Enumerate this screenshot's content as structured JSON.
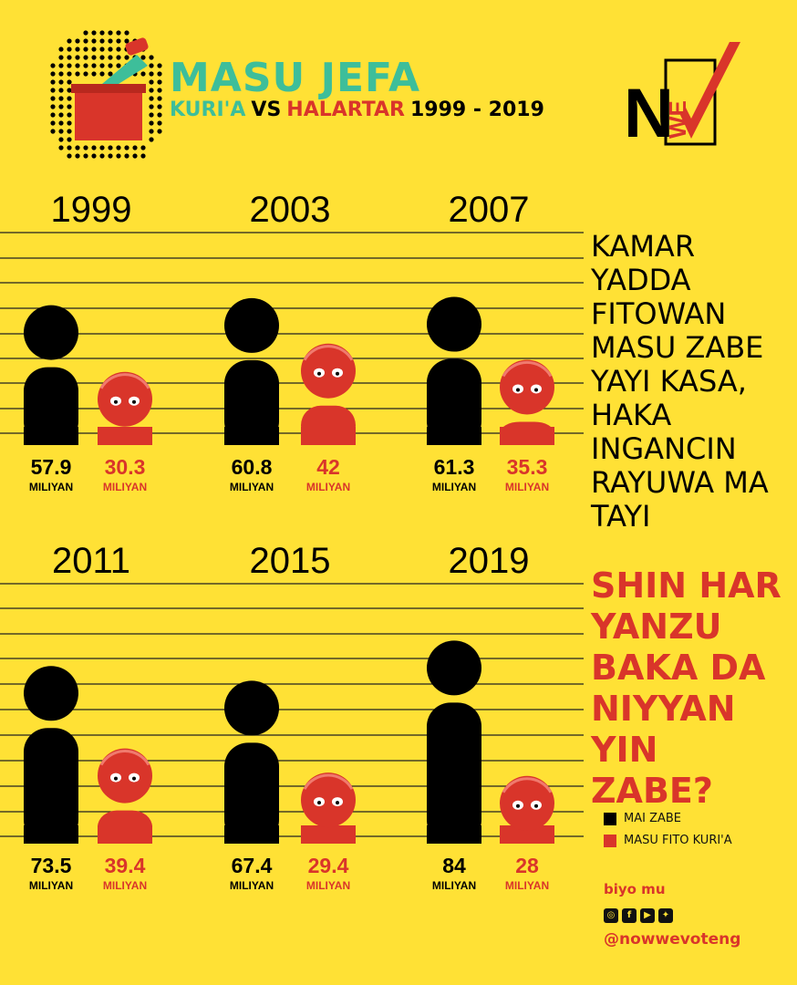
{
  "header": {
    "title": "MASU JEFA",
    "sub_part1": "KURI'A",
    "sub_part2": "VS",
    "sub_part3": "HALARTAR",
    "sub_part4": "1999 - 2019",
    "title_color": "#3DBE9A",
    "accent_color": "#D9352A"
  },
  "logo": {
    "letters": "NWE"
  },
  "side_text": [
    "KAMAR",
    "YADDA",
    "FITOWAN",
    "MASU ZABE",
    "YAYI KASA,",
    "HAKA",
    "INGANCIN",
    "RAYUWA MA",
    "TAYI"
  ],
  "question": [
    "SHIN HAR",
    "YANZU",
    "BAKA DA",
    "NIYYAN",
    "YIN",
    "ZABE?"
  ],
  "legend": [
    {
      "label": "MAI ZABE",
      "color": "#000000"
    },
    {
      "label": "MASU FITO KURI'A",
      "color": "#D9352A"
    }
  ],
  "footer": {
    "follow_label": "biyo mu",
    "social_icons": [
      "instagram-icon",
      "facebook-icon",
      "youtube-icon",
      "twitter-icon"
    ],
    "handle": "@nowwevoteng"
  },
  "chart_data": {
    "type": "bar",
    "unit_label": "MILIYAN",
    "categories": [
      "1999",
      "2003",
      "2007",
      "2011",
      "2015",
      "2019"
    ],
    "series": [
      {
        "name": "MAI ZABE",
        "color": "#000000",
        "values": [
          57.9,
          60.8,
          61.3,
          73.5,
          67.4,
          84
        ],
        "labels": [
          "57.9",
          "60.8",
          "61.3",
          "73.5",
          "67.4",
          "84"
        ]
      },
      {
        "name": "MASU FITO KURI'A",
        "color": "#D9352A",
        "values": [
          30.3,
          42,
          35.3,
          39.4,
          29.4,
          28
        ],
        "labels": [
          "30.3",
          "42",
          "35.3",
          "39.4",
          "29.4",
          "28"
        ]
      }
    ]
  }
}
